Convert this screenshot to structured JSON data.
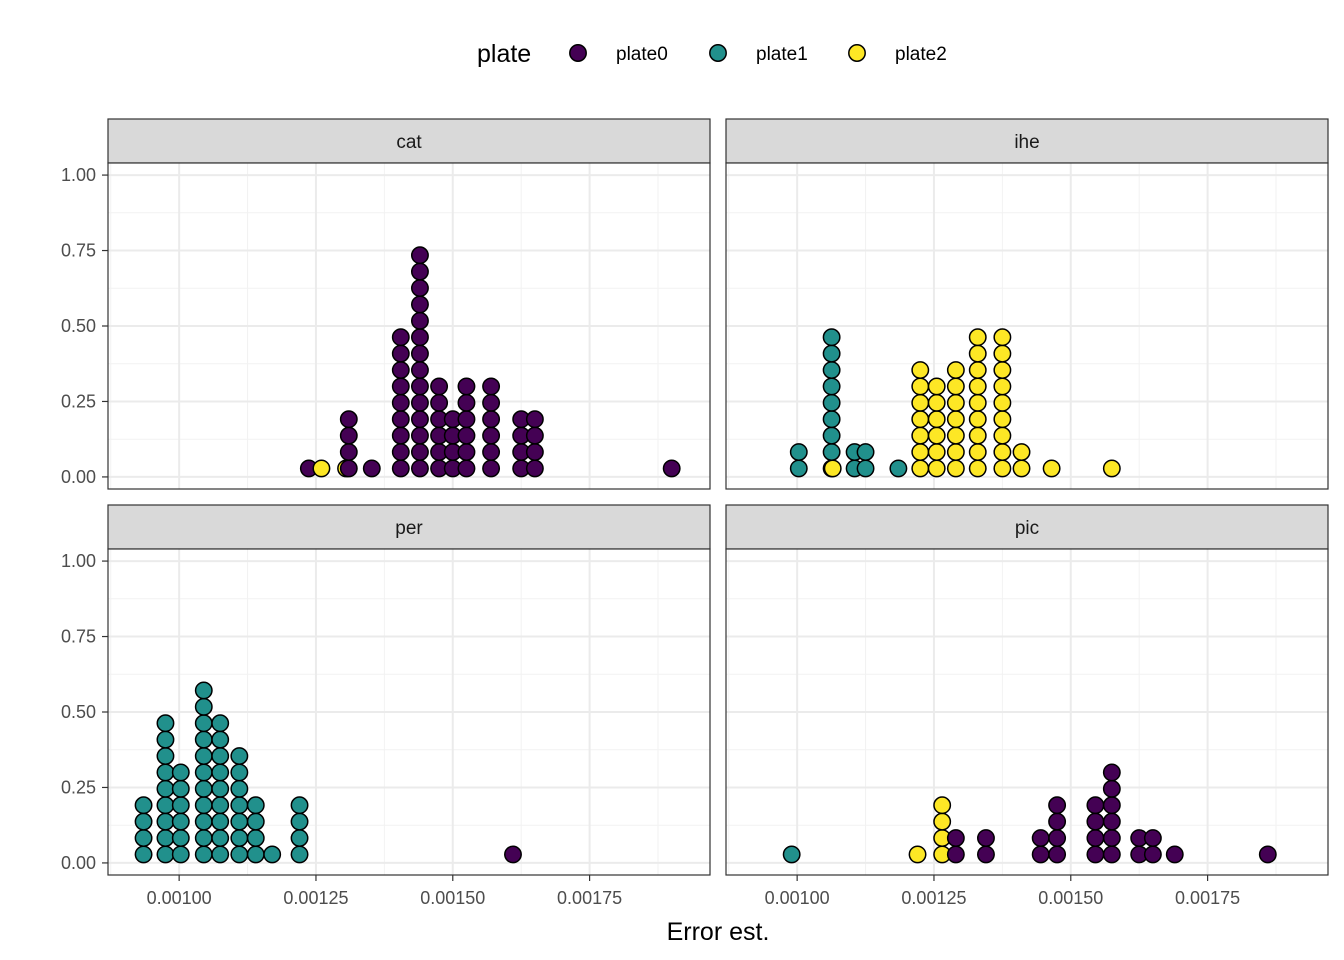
{
  "chart_data": {
    "type": "scatter",
    "subtype": "dotplot",
    "xlabel": "Error est.",
    "ylabel": "",
    "legend": {
      "title": "plate",
      "position": "top",
      "entries": [
        {
          "name": "plate0",
          "color": "#440154"
        },
        {
          "name": "plate1",
          "color": "#21908C"
        },
        {
          "name": "plate2",
          "color": "#FDE725"
        }
      ]
    },
    "xlim": [
      0.00087,
      0.00197
    ],
    "ylim": [
      -0.04,
      1.04
    ],
    "x_ticks": [
      0.001,
      0.00125,
      0.0015,
      0.00175
    ],
    "x_tick_labels": [
      "0.00100",
      "0.00125",
      "0.00150",
      "0.00175"
    ],
    "y_ticks": [
      0,
      0.25,
      0.5,
      0.75,
      1
    ],
    "y_tick_labels": [
      "0.00",
      "0.25",
      "0.50",
      "0.75",
      "1.00"
    ],
    "grid": true,
    "panels": [
      {
        "title": "cat",
        "stacks": [
          {
            "x": 0.001237,
            "plate": "plate0",
            "count": 1
          },
          {
            "x": 0.00126,
            "plate": "plate2",
            "count": 1
          },
          {
            "x": 0.001305,
            "plate": "plate2",
            "count": 1
          },
          {
            "x": 0.00131,
            "plate": "plate0",
            "count": 4
          },
          {
            "x": 0.001352,
            "plate": "plate0",
            "count": 1
          },
          {
            "x": 0.001405,
            "plate": "plate0",
            "count": 9
          },
          {
            "x": 0.00144,
            "plate": "plate0",
            "count": 14
          },
          {
            "x": 0.001475,
            "plate": "plate0",
            "count": 6
          },
          {
            "x": 0.0015,
            "plate": "plate0",
            "count": 4
          },
          {
            "x": 0.001525,
            "plate": "plate0",
            "count": 6
          },
          {
            "x": 0.00157,
            "plate": "plate0",
            "count": 6
          },
          {
            "x": 0.001625,
            "plate": "plate0",
            "count": 4
          },
          {
            "x": 0.00165,
            "plate": "plate0",
            "count": 4
          },
          {
            "x": 0.0019,
            "plate": "plate0",
            "count": 1
          }
        ]
      },
      {
        "title": "ihe",
        "stacks": [
          {
            "x": 0.001003,
            "plate": "plate1",
            "count": 2
          },
          {
            "x": 0.001063,
            "plate": "plate1",
            "count": 9
          },
          {
            "x": 0.001065,
            "plate": "plate2",
            "count": 1
          },
          {
            "x": 0.001105,
            "plate": "plate1",
            "count": 2
          },
          {
            "x": 0.001125,
            "plate": "plate1",
            "count": 2
          },
          {
            "x": 0.001185,
            "plate": "plate1",
            "count": 1
          },
          {
            "x": 0.001225,
            "plate": "plate2",
            "count": 7
          },
          {
            "x": 0.001255,
            "plate": "plate2",
            "count": 6
          },
          {
            "x": 0.00129,
            "plate": "plate2",
            "count": 7
          },
          {
            "x": 0.00133,
            "plate": "plate2",
            "count": 9
          },
          {
            "x": 0.001375,
            "plate": "plate2",
            "count": 9
          },
          {
            "x": 0.00141,
            "plate": "plate2",
            "count": 2
          },
          {
            "x": 0.001465,
            "plate": "plate2",
            "count": 1
          },
          {
            "x": 0.001575,
            "plate": "plate2",
            "count": 1
          }
        ]
      },
      {
        "title": "per",
        "stacks": [
          {
            "x": 0.000935,
            "plate": "plate1",
            "count": 4
          },
          {
            "x": 0.000975,
            "plate": "plate1",
            "count": 9
          },
          {
            "x": 0.001003,
            "plate": "plate1",
            "count": 6
          },
          {
            "x": 0.001045,
            "plate": "plate1",
            "count": 11
          },
          {
            "x": 0.001075,
            "plate": "plate1",
            "count": 9
          },
          {
            "x": 0.00111,
            "plate": "plate1",
            "count": 7
          },
          {
            "x": 0.00114,
            "plate": "plate1",
            "count": 4
          },
          {
            "x": 0.00117,
            "plate": "plate1",
            "count": 1
          },
          {
            "x": 0.00122,
            "plate": "plate1",
            "count": 4
          },
          {
            "x": 0.00161,
            "plate": "plate0",
            "count": 1
          }
        ]
      },
      {
        "title": "pic",
        "stacks": [
          {
            "x": 0.00099,
            "plate": "plate1",
            "count": 1
          },
          {
            "x": 0.00122,
            "plate": "plate2",
            "count": 1
          },
          {
            "x": 0.001265,
            "plate": "plate2",
            "count": 4
          },
          {
            "x": 0.00129,
            "plate": "plate0",
            "count": 2
          },
          {
            "x": 0.001345,
            "plate": "plate0",
            "count": 2
          },
          {
            "x": 0.001445,
            "plate": "plate0",
            "count": 2
          },
          {
            "x": 0.001475,
            "plate": "plate0",
            "count": 4
          },
          {
            "x": 0.001545,
            "plate": "plate0",
            "count": 4
          },
          {
            "x": 0.001575,
            "plate": "plate0",
            "count": 6
          },
          {
            "x": 0.001625,
            "plate": "plate0",
            "count": 2
          },
          {
            "x": 0.00165,
            "plate": "plate0",
            "count": 2
          },
          {
            "x": 0.00169,
            "plate": "plate0",
            "count": 1
          },
          {
            "x": 0.00186,
            "plate": "plate0",
            "count": 1
          }
        ]
      }
    ]
  }
}
